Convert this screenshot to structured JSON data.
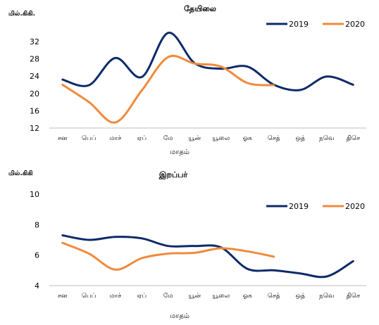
{
  "chart_data": [
    {
      "type": "line",
      "title": "தேயிலை",
      "ylabel": "மில்.கிகி.",
      "xlabel": "மாதம்",
      "categories": [
        "சன",
        "பெப்",
        "மாச்",
        "ஏப்",
        "மே",
        "யூன்",
        "யூலை",
        "ஓக",
        "செத்",
        "ஒத்",
        "நவெ",
        "திசெ"
      ],
      "ylim": [
        12,
        32
      ],
      "yticks": [
        12,
        16,
        20,
        24,
        28,
        32
      ],
      "grid": false,
      "legend": "top-right",
      "series": [
        {
          "name": "2019",
          "color": "#0d2a68",
          "values": [
            23.2,
            21.9,
            28.2,
            23.8,
            34.0,
            27.0,
            25.7,
            26.2,
            22.0,
            20.8,
            23.9,
            22.0
          ]
        },
        {
          "name": "2020",
          "color": "#f08a3c",
          "values": [
            22.0,
            18.0,
            13.3,
            20.7,
            28.4,
            26.9,
            26.2,
            22.4,
            21.9,
            null,
            null,
            null
          ]
        }
      ]
    },
    {
      "type": "line",
      "title": "இறப்பர்",
      "ylabel": "மில்.கிகி",
      "xlabel": "மாதம்",
      "categories": [
        "சன",
        "பெப்",
        "மாச்",
        "ஏப்",
        "மே",
        "யூன்",
        "யூலை",
        "ஓக",
        "செத்",
        "ஒத்",
        "நவெ",
        "திசெ"
      ],
      "ylim": [
        4,
        10
      ],
      "yticks": [
        4,
        6,
        8,
        10
      ],
      "grid": false,
      "legend": "top-right",
      "series": [
        {
          "name": "2019",
          "color": "#0d2a68",
          "values": [
            7.3,
            7.0,
            7.2,
            7.1,
            6.6,
            6.6,
            6.5,
            5.1,
            5.0,
            4.8,
            4.6,
            5.6
          ]
        },
        {
          "name": "2020",
          "color": "#f08a3c",
          "values": [
            6.8,
            6.1,
            5.05,
            5.8,
            6.1,
            6.15,
            6.45,
            6.25,
            5.9,
            null,
            null,
            null
          ]
        }
      ]
    }
  ]
}
